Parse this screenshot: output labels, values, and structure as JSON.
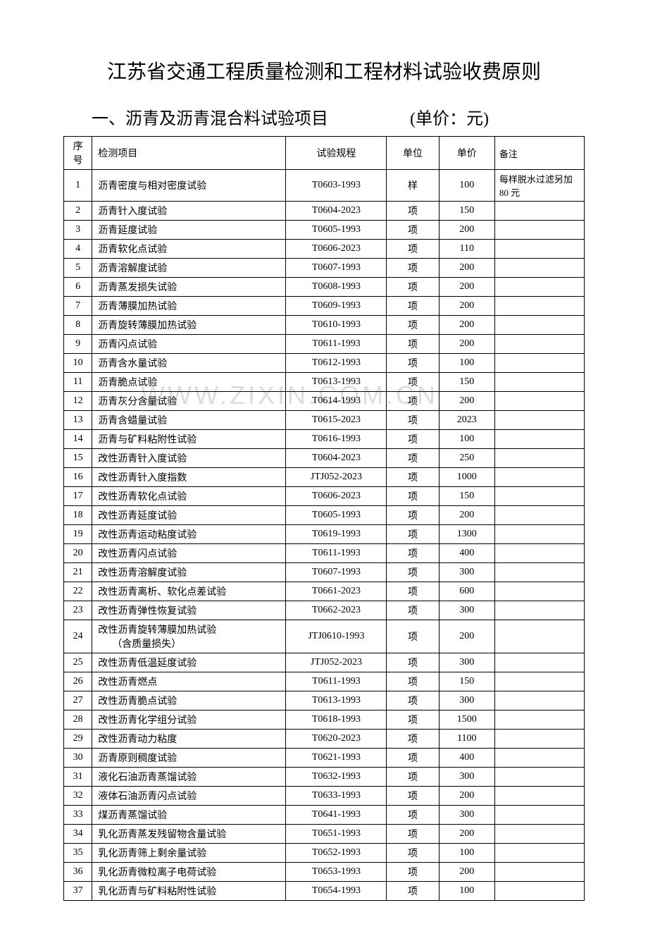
{
  "title": "江苏省交通工程质量检测和工程材料试验收费原则",
  "section_title": "一、沥青及沥青混合料试验项目",
  "unit_label": "(单价：元)",
  "watermark": "WWW.ZIXIN.COM.CN",
  "headers": {
    "seq": "序号",
    "name": "检测项目",
    "spec": "试验规程",
    "unit": "单位",
    "price": "单价",
    "remark": "备注"
  },
  "colors": {
    "text": "#000000",
    "background": "#ffffff",
    "border": "#000000",
    "watermark": "#dddddd"
  },
  "typography": {
    "title_fontsize": 28,
    "subtitle_fontsize": 24,
    "table_fontsize": 14,
    "font_family": "SimSun"
  },
  "rows": [
    {
      "seq": "1",
      "name": "沥青密度与相对密度试验",
      "spec": "T0603-1993",
      "unit": "样",
      "price": "100",
      "remark": "每样脱水过滤另加 80 元",
      "tall": true
    },
    {
      "seq": "2",
      "name": "沥青针入度试验",
      "spec": "T0604-2023",
      "unit": "项",
      "price": "150",
      "remark": ""
    },
    {
      "seq": "3",
      "name": "沥青延度试验",
      "spec": "T0605-1993",
      "unit": "项",
      "price": "200",
      "remark": ""
    },
    {
      "seq": "4",
      "name": "沥青软化点试验",
      "spec": "T0606-2023",
      "unit": "项",
      "price": "110",
      "remark": ""
    },
    {
      "seq": "5",
      "name": "沥青溶解度试验",
      "spec": "T0607-1993",
      "unit": "项",
      "price": "200",
      "remark": ""
    },
    {
      "seq": "6",
      "name": "沥青蒸发损失试验",
      "spec": "T0608-1993",
      "unit": "项",
      "price": "200",
      "remark": ""
    },
    {
      "seq": "7",
      "name": "沥青薄膜加热试验",
      "spec": "T0609-1993",
      "unit": "项",
      "price": "200",
      "remark": ""
    },
    {
      "seq": "8",
      "name": "沥青旋转薄膜加热试验",
      "spec": "T0610-1993",
      "unit": "项",
      "price": "200",
      "remark": ""
    },
    {
      "seq": "9",
      "name": "沥青闪点试验",
      "spec": "T0611-1993",
      "unit": "项",
      "price": "200",
      "remark": ""
    },
    {
      "seq": "10",
      "name": "沥青含水量试验",
      "spec": "T0612-1993",
      "unit": "项",
      "price": "100",
      "remark": ""
    },
    {
      "seq": "11",
      "name": "沥青脆点试验",
      "spec": "T0613-1993",
      "unit": "项",
      "price": "150",
      "remark": ""
    },
    {
      "seq": "12",
      "name": "沥青灰分含量试验",
      "spec": "T0614-1993",
      "unit": "项",
      "price": "200",
      "remark": ""
    },
    {
      "seq": "13",
      "name": "沥青含蜡量试验",
      "spec": "T0615-2023",
      "unit": "项",
      "price": "2023",
      "remark": ""
    },
    {
      "seq": "14",
      "name": "沥青与矿料粘附性试验",
      "spec": "T0616-1993",
      "unit": "项",
      "price": "100",
      "remark": ""
    },
    {
      "seq": "15",
      "name": "改性沥青针入度试验",
      "spec": "T0604-2023",
      "unit": "项",
      "price": "250",
      "remark": ""
    },
    {
      "seq": "16",
      "name": "改性沥青针入度指数",
      "spec": "JTJ052-2023",
      "unit": "项",
      "price": "1000",
      "remark": ""
    },
    {
      "seq": "17",
      "name": "改性沥青软化点试验",
      "spec": "T0606-2023",
      "unit": "项",
      "price": "150",
      "remark": ""
    },
    {
      "seq": "18",
      "name": "改性沥青延度试验",
      "spec": "T0605-1993",
      "unit": "项",
      "price": "200",
      "remark": ""
    },
    {
      "seq": "19",
      "name": "改性沥青运动粘度试验",
      "spec": "T0619-1993",
      "unit": "项",
      "price": "1300",
      "remark": ""
    },
    {
      "seq": "20",
      "name": "改性沥青闪点试验",
      "spec": "T0611-1993",
      "unit": "项",
      "price": "400",
      "remark": ""
    },
    {
      "seq": "21",
      "name": "改性沥青溶解度试验",
      "spec": "T0607-1993",
      "unit": "项",
      "price": "300",
      "remark": ""
    },
    {
      "seq": "22",
      "name": "改性沥青离析、软化点差试验",
      "spec": "T0661-2023",
      "unit": "项",
      "price": "600",
      "remark": ""
    },
    {
      "seq": "23",
      "name": "改性沥青弹性恢复试验",
      "spec": "T0662-2023",
      "unit": "项",
      "price": "300",
      "remark": ""
    },
    {
      "seq": "24",
      "name": "改性沥青旋转薄膜加热试验\n（含质量损失）",
      "spec": "JTJ0610-1993",
      "unit": "项",
      "price": "200",
      "remark": "",
      "tall": true,
      "multiline": true
    },
    {
      "seq": "25",
      "name": "改性沥青低温延度试验",
      "spec": "JTJ052-2023",
      "unit": "项",
      "price": "300",
      "remark": ""
    },
    {
      "seq": "26",
      "name": "改性沥青燃点",
      "spec": "T0611-1993",
      "unit": "项",
      "price": "150",
      "remark": ""
    },
    {
      "seq": "27",
      "name": "改性沥青脆点试验",
      "spec": "T0613-1993",
      "unit": "项",
      "price": "300",
      "remark": ""
    },
    {
      "seq": "28",
      "name": "改性沥青化学组分试验",
      "spec": "T0618-1993",
      "unit": "项",
      "price": "1500",
      "remark": ""
    },
    {
      "seq": "29",
      "name": "改性沥青动力粘度",
      "spec": "T0620-2023",
      "unit": "项",
      "price": "1100",
      "remark": ""
    },
    {
      "seq": "30",
      "name": "沥青原则稠度试验",
      "spec": "T0621-1993",
      "unit": "项",
      "price": "400",
      "remark": ""
    },
    {
      "seq": "31",
      "name": "液化石油沥青蒸馏试验",
      "spec": "T0632-1993",
      "unit": "项",
      "price": "300",
      "remark": ""
    },
    {
      "seq": "32",
      "name": "液体石油沥青闪点试验",
      "spec": "T0633-1993",
      "unit": "项",
      "price": "200",
      "remark": ""
    },
    {
      "seq": "33",
      "name": "煤沥青蒸馏试验",
      "spec": "T0641-1993",
      "unit": "项",
      "price": "300",
      "remark": ""
    },
    {
      "seq": "34",
      "name": "乳化沥青蒸发残留物含量试验",
      "spec": "T0651-1993",
      "unit": "项",
      "price": "200",
      "remark": ""
    },
    {
      "seq": "35",
      "name": "乳化沥青筛上剩余量试验",
      "spec": "T0652-1993",
      "unit": "项",
      "price": "100",
      "remark": ""
    },
    {
      "seq": "36",
      "name": "乳化沥青微粒离子电荷试验",
      "spec": "T0653-1993",
      "unit": "项",
      "price": "200",
      "remark": ""
    },
    {
      "seq": "37",
      "name": "乳化沥青与矿料粘附性试验",
      "spec": "T0654-1993",
      "unit": "项",
      "price": "100",
      "remark": ""
    }
  ]
}
